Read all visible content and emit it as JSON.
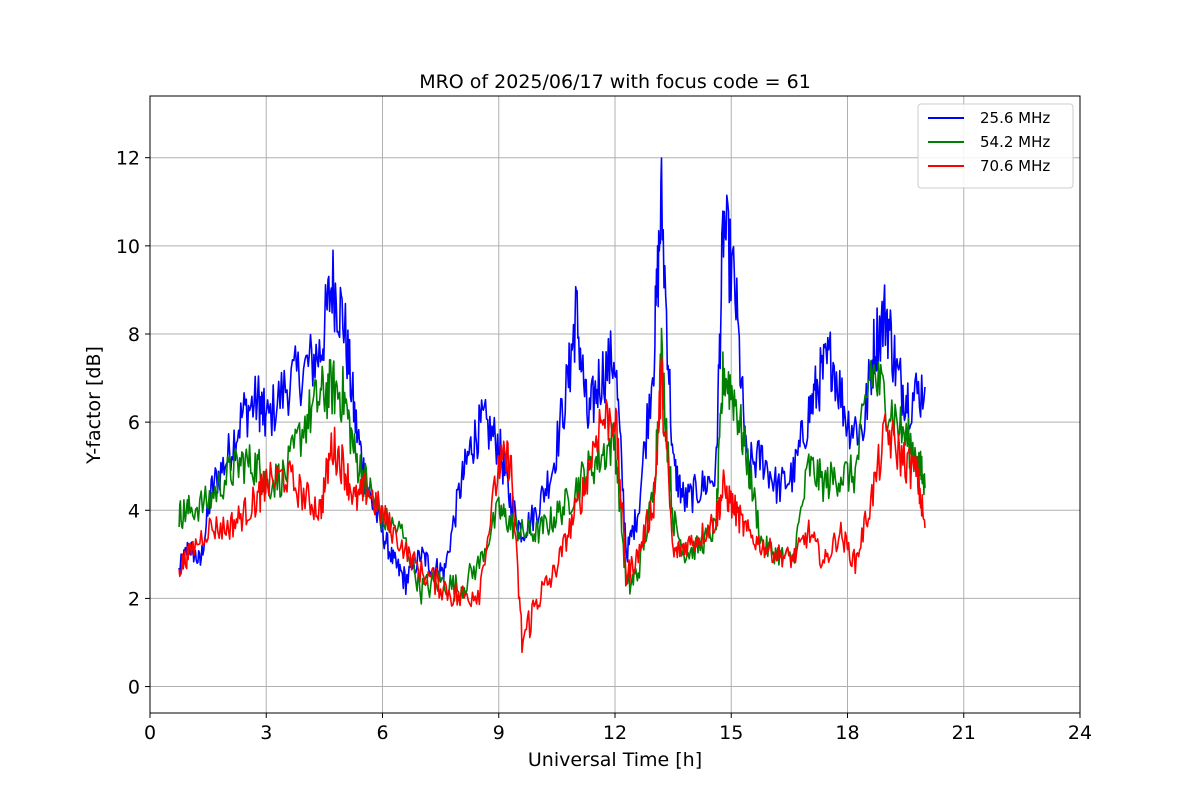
{
  "chart_data": {
    "type": "line",
    "title": "MRO of 2025/06/17 with focus code = 61",
    "xlabel": "Universal Time [h]",
    "ylabel": "Y-factor [dB]",
    "xlim": [
      0,
      24
    ],
    "ylim": [
      -0.6,
      13.4
    ],
    "xticks": [
      0,
      3,
      6,
      9,
      12,
      15,
      18,
      21,
      24
    ],
    "yticks": [
      0,
      2,
      4,
      6,
      8,
      10,
      12
    ],
    "grid": true,
    "legend_position": "top-right",
    "series": [
      {
        "name": "25.6 MHz",
        "color": "#0000ff",
        "x": [
          0.75,
          1.0,
          1.3,
          1.6,
          2.0,
          2.4,
          2.8,
          3.0,
          3.5,
          4.0,
          4.4,
          4.7,
          5.0,
          5.3,
          5.6,
          6.0,
          6.3,
          6.6,
          7.0,
          7.3,
          7.6,
          8.0,
          8.3,
          8.6,
          9.0,
          9.3,
          9.6,
          10.0,
          10.4,
          10.8,
          11.0,
          11.3,
          11.6,
          12.0,
          12.3,
          12.6,
          13.0,
          13.2,
          13.5,
          13.8,
          14.2,
          14.6,
          14.8,
          15.1,
          15.4,
          15.8,
          16.2,
          16.6,
          17.0,
          17.3,
          17.6,
          18.0,
          18.4,
          18.7,
          19.0,
          19.3,
          19.6,
          20.0
        ],
        "y": [
          2.6,
          3.2,
          2.8,
          4.5,
          5.2,
          6.2,
          6.5,
          6.0,
          6.8,
          7.2,
          7.6,
          9.2,
          8.3,
          6.0,
          4.5,
          3.5,
          2.8,
          2.4,
          3.0,
          2.7,
          2.6,
          4.5,
          5.5,
          6.0,
          5.5,
          4.2,
          3.5,
          4.0,
          5.0,
          7.0,
          8.5,
          6.0,
          7.0,
          7.5,
          3.0,
          4.0,
          7.5,
          11.0,
          5.0,
          4.2,
          4.5,
          4.8,
          10.5,
          9.0,
          5.0,
          5.2,
          4.5,
          4.8,
          6.2,
          7.0,
          7.5,
          6.0,
          5.8,
          7.8,
          8.5,
          7.0,
          6.5,
          6.8
        ]
      },
      {
        "name": "54.2 MHz",
        "color": "#008000",
        "x": [
          0.75,
          1.0,
          1.5,
          2.0,
          2.4,
          2.8,
          3.0,
          3.5,
          4.0,
          4.4,
          4.7,
          5.0,
          5.3,
          5.6,
          6.0,
          6.5,
          7.0,
          7.5,
          8.0,
          8.5,
          9.0,
          9.3,
          9.6,
          10.0,
          10.4,
          10.8,
          11.2,
          11.6,
          12.0,
          12.3,
          12.6,
          13.0,
          13.2,
          13.5,
          13.8,
          14.2,
          14.6,
          14.8,
          15.1,
          15.4,
          15.8,
          16.2,
          16.6,
          17.0,
          17.4,
          17.8,
          18.2,
          18.6,
          19.0,
          19.4,
          19.8,
          20.0
        ],
        "y": [
          3.9,
          4.0,
          4.2,
          4.8,
          5.1,
          5.0,
          4.6,
          4.8,
          6.0,
          6.6,
          6.8,
          6.6,
          5.2,
          4.6,
          3.8,
          3.5,
          2.2,
          2.4,
          2.2,
          2.8,
          4.0,
          3.7,
          3.5,
          3.5,
          3.8,
          4.2,
          4.8,
          5.2,
          5.6,
          2.2,
          2.6,
          4.4,
          7.5,
          3.8,
          3.0,
          3.2,
          3.6,
          7.2,
          6.5,
          5.2,
          3.2,
          3.0,
          2.9,
          5.0,
          4.6,
          4.8,
          4.8,
          7.2,
          6.5,
          5.8,
          5.2,
          4.5
        ]
      },
      {
        "name": "70.6 MHz",
        "color": "#ff0000",
        "x": [
          0.75,
          1.0,
          1.5,
          2.0,
          2.4,
          2.8,
          3.0,
          3.5,
          4.0,
          4.4,
          4.7,
          5.0,
          5.3,
          5.6,
          6.0,
          6.5,
          7.0,
          7.5,
          8.0,
          8.5,
          9.0,
          9.3,
          9.6,
          10.0,
          10.4,
          10.8,
          11.2,
          11.6,
          12.0,
          12.3,
          12.6,
          13.0,
          13.2,
          13.5,
          13.8,
          14.2,
          14.6,
          14.8,
          15.1,
          15.4,
          15.8,
          16.2,
          16.6,
          17.0,
          17.4,
          17.8,
          18.2,
          18.6,
          19.0,
          19.4,
          19.8,
          20.0
        ],
        "y": [
          2.7,
          3.0,
          3.6,
          3.6,
          3.9,
          4.3,
          4.6,
          4.8,
          4.3,
          4.0,
          5.5,
          5.0,
          4.2,
          4.5,
          3.9,
          3.2,
          2.6,
          2.3,
          2.0,
          2.2,
          5.0,
          5.2,
          1.0,
          2.0,
          2.5,
          3.5,
          4.5,
          6.0,
          6.2,
          2.5,
          3.0,
          4.2,
          7.0,
          3.0,
          3.2,
          3.4,
          3.8,
          4.5,
          4.0,
          3.5,
          3.2,
          3.0,
          2.9,
          3.5,
          2.8,
          3.5,
          2.8,
          4.2,
          5.8,
          5.2,
          4.8,
          3.6
        ]
      }
    ]
  }
}
